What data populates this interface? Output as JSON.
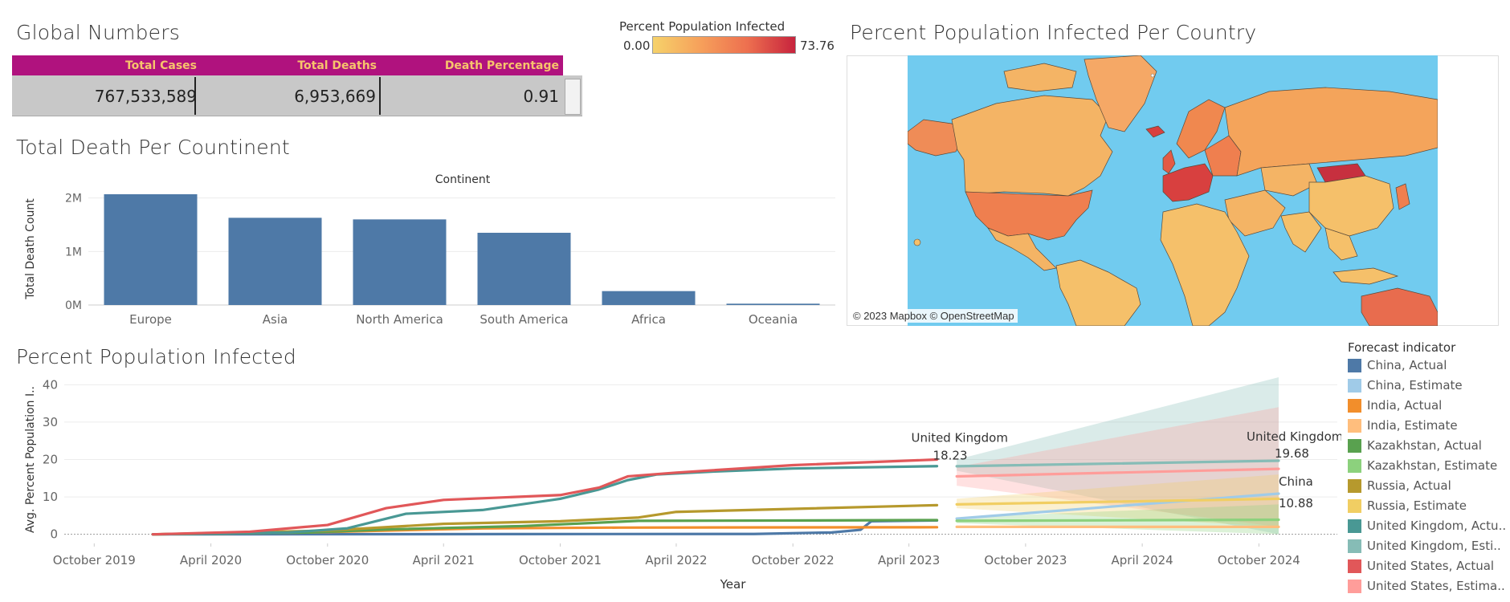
{
  "global_numbers": {
    "title": "Global Numbers",
    "headers": [
      "Total Cases",
      "Total Deaths",
      "Death Percentage"
    ],
    "values": [
      "767,533,589",
      "6,953,669",
      "0.91"
    ]
  },
  "map_legend": {
    "title": "Percent Population Infected",
    "min_label": "0.00",
    "max_label": "73.76",
    "gradient_colors": [
      "#f6d26a",
      "#f6a05b",
      "#ed6f4f",
      "#c7233d"
    ]
  },
  "map": {
    "title": "Percent Population Infected Per Country",
    "attribution": "© 2023 Mapbox © OpenStreetMap",
    "ocean_color": "#71cbef"
  },
  "chart_data": [
    {
      "type": "bar",
      "title": "Total Death Per Countinent",
      "column_header": "Continent",
      "ylabel": "Total Death Count",
      "categories": [
        "Europe",
        "Asia",
        "North America",
        "South America",
        "Africa",
        "Oceania"
      ],
      "values": [
        2070000,
        1630000,
        1600000,
        1350000,
        260000,
        25000
      ],
      "ylim": [
        0,
        2100000
      ],
      "yticks": [
        0,
        1000000,
        2000000
      ],
      "ytick_labels": [
        "0M",
        "1M",
        "2M"
      ],
      "color": "#4e79a7",
      "grid": true
    },
    {
      "type": "line",
      "title": "Percent Population Infected",
      "xlabel": "Year",
      "ylabel": "Avg. Percent Population I..",
      "ylim": [
        -2,
        42
      ],
      "yticks": [
        0,
        10,
        20,
        30,
        40
      ],
      "xlim": [
        "2019-08-15",
        "2025-02-01"
      ],
      "xticks": [
        "2019-10-01",
        "2020-04-01",
        "2020-10-01",
        "2021-04-01",
        "2021-10-01",
        "2022-04-01",
        "2022-10-01",
        "2023-04-01",
        "2023-10-01",
        "2024-04-01",
        "2024-10-01"
      ],
      "xtick_labels": [
        "October 2019",
        "April 2020",
        "October 2020",
        "April 2021",
        "October 2021",
        "April 2022",
        "October 2022",
        "April 2023",
        "October 2023",
        "April 2024",
        "October 2024"
      ],
      "legend_title": "Forecast indicator",
      "legend": [
        {
          "label": "China, Actual",
          "color": "#4e79a7"
        },
        {
          "label": "China, Estimate",
          "color": "#a0cbe8"
        },
        {
          "label": "India, Actual",
          "color": "#f28e2b"
        },
        {
          "label": "India, Estimate",
          "color": "#ffbe7d"
        },
        {
          "label": "Kazakhstan, Actual",
          "color": "#59a14f"
        },
        {
          "label": "Kazakhstan, Estimate",
          "color": "#8cd17d"
        },
        {
          "label": "Russia, Actual",
          "color": "#b6992d"
        },
        {
          "label": "Russia, Estimate",
          "color": "#f1ce63"
        },
        {
          "label": "United Kingdom, Actu..",
          "color": "#499894"
        },
        {
          "label": "United Kingdom, Esti..",
          "color": "#86bcb6"
        },
        {
          "label": "United States, Actual",
          "color": "#e15759"
        },
        {
          "label": "United States, Estima..",
          "color": "#ff9d9a"
        }
      ],
      "series": [
        {
          "name": "China, Actual",
          "color": "#4e79a7",
          "x": [
            "2020-01-01",
            "2022-08-01",
            "2022-12-01",
            "2023-01-15",
            "2023-02-01",
            "2023-05-15"
          ],
          "y": [
            0,
            0.1,
            0.5,
            1.2,
            3.5,
            3.7
          ]
        },
        {
          "name": "India, Actual",
          "color": "#f28e2b",
          "x": [
            "2020-01-01",
            "2020-09-01",
            "2021-06-01",
            "2022-01-01",
            "2023-05-15"
          ],
          "y": [
            0,
            0.5,
            1.6,
            1.8,
            1.9
          ]
        },
        {
          "name": "Kazakhstan, Actual",
          "color": "#59a14f",
          "x": [
            "2020-01-01",
            "2020-09-01",
            "2021-01-01",
            "2021-08-01",
            "2022-02-01",
            "2023-05-15"
          ],
          "y": [
            0,
            0.5,
            1.3,
            2.2,
            3.6,
            3.8
          ]
        },
        {
          "name": "Russia, Actual",
          "color": "#b6992d",
          "x": [
            "2020-01-01",
            "2020-10-01",
            "2021-04-01",
            "2021-10-01",
            "2022-02-01",
            "2022-04-01",
            "2022-10-01",
            "2023-05-15"
          ],
          "y": [
            0,
            1.0,
            2.8,
            3.5,
            4.5,
            6.0,
            6.8,
            7.8
          ]
        },
        {
          "name": "United Kingdom, Actual",
          "color": "#499894",
          "x": [
            "2020-01-01",
            "2020-08-01",
            "2020-11-01",
            "2021-02-01",
            "2021-06-01",
            "2021-10-01",
            "2021-12-01",
            "2022-01-15",
            "2022-03-01",
            "2022-06-01",
            "2022-10-01",
            "2023-05-15"
          ],
          "y": [
            0,
            0.5,
            1.6,
            5.5,
            6.5,
            9.5,
            12,
            14.5,
            16,
            16.8,
            17.6,
            18.23
          ]
        },
        {
          "name": "United States, Actual",
          "color": "#e15759",
          "x": [
            "2020-01-01",
            "2020-06-01",
            "2020-10-01",
            "2021-01-01",
            "2021-04-01",
            "2021-10-01",
            "2021-12-01",
            "2022-01-15",
            "2022-04-01",
            "2022-10-01",
            "2023-05-15"
          ],
          "y": [
            0,
            0.7,
            2.5,
            7.0,
            9.2,
            10.5,
            12.5,
            15.5,
            16.5,
            18.5,
            20
          ]
        },
        {
          "name": "China, Estimate",
          "color": "#a0cbe8",
          "x": [
            "2023-06-15",
            "2024-11-01"
          ],
          "y": [
            4.2,
            10.88
          ]
        },
        {
          "name": "India, Estimate",
          "color": "#ffbe7d",
          "x": [
            "2023-06-15",
            "2024-11-01"
          ],
          "y": [
            2.0,
            2.0
          ]
        },
        {
          "name": "Kazakhstan, Estimate",
          "color": "#8cd17d",
          "x": [
            "2023-06-15",
            "2024-11-01"
          ],
          "y": [
            3.6,
            3.9
          ]
        },
        {
          "name": "Russia, Estimate",
          "color": "#f1ce63",
          "x": [
            "2023-06-15",
            "2024-11-01"
          ],
          "y": [
            8.0,
            9.5
          ]
        },
        {
          "name": "United Kingdom, Estimate",
          "color": "#86bcb6",
          "x": [
            "2023-06-15",
            "2024-11-01"
          ],
          "y": [
            18.2,
            19.68
          ]
        },
        {
          "name": "United States, Estimate",
          "color": "#ff9d9a",
          "x": [
            "2023-06-15",
            "2024-11-01"
          ],
          "y": [
            15.5,
            17.5
          ]
        }
      ],
      "bands": [
        {
          "color": "#86bcb6",
          "x": [
            "2023-06-15",
            "2024-11-01"
          ],
          "upper": [
            20,
            42
          ],
          "lower": [
            17,
            0
          ]
        },
        {
          "color": "#ff9d9a",
          "x": [
            "2023-06-15",
            "2024-11-01"
          ],
          "upper": [
            18,
            34
          ],
          "lower": [
            13,
            2
          ]
        },
        {
          "color": "#f1ce63",
          "x": [
            "2023-06-15",
            "2024-11-01"
          ],
          "upper": [
            9.5,
            16
          ],
          "lower": [
            7,
            2
          ]
        },
        {
          "color": "#8cd17d",
          "x": [
            "2023-06-15",
            "2024-11-01"
          ],
          "upper": [
            4.5,
            8
          ],
          "lower": [
            3,
            0
          ]
        }
      ],
      "annotations": [
        {
          "text": "United Kingdom",
          "x": "2023-05-15",
          "y": 18.23
        },
        {
          "text": "18.23",
          "x": "2023-05-15",
          "y": 18.23
        },
        {
          "text": "United Kingdom",
          "x": "2024-11-01",
          "y": 19.68
        },
        {
          "text": "19.68",
          "x": "2024-11-01",
          "y": 19.68
        },
        {
          "text": "China",
          "x": "2024-11-01",
          "y": 10.88
        },
        {
          "text": "10.88",
          "x": "2024-11-01",
          "y": 10.88
        }
      ]
    }
  ]
}
